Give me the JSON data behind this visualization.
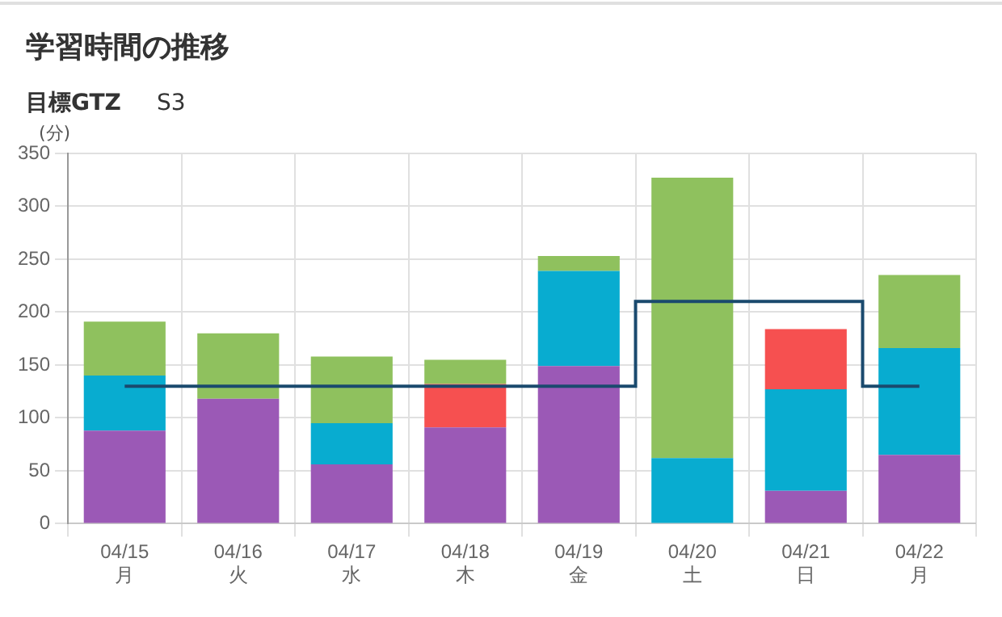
{
  "chart_data": {
    "type": "bar",
    "title": "学習時間の推移",
    "subtitle": "目標GTZ",
    "annotations": [
      "S3"
    ],
    "ylabel": "(分)",
    "categories": [
      "04/15\n月",
      "04/16\n火",
      "04/17\n水",
      "04/18\n木",
      "04/19\n金",
      "04/20\n土",
      "04/21\n日",
      "04/22\n月"
    ],
    "stacked": true,
    "ylim": [
      0,
      350
    ],
    "yticks": [
      0,
      50,
      100,
      150,
      200,
      250,
      300,
      350
    ],
    "grid": true,
    "legend": false,
    "series": [
      {
        "color": "#9b59b6",
        "values": [
          88,
          118,
          56,
          91,
          149,
          null,
          31,
          65
        ]
      },
      {
        "color": "#08acd0",
        "values": [
          52,
          null,
          39,
          null,
          90,
          62,
          96,
          101
        ]
      },
      {
        "color": "#f65050",
        "values": [
          null,
          null,
          null,
          41,
          null,
          null,
          57,
          null
        ]
      },
      {
        "color": "#8fc15e",
        "values": [
          51,
          62,
          63,
          23,
          14,
          265,
          null,
          69
        ]
      },
      {
        "type": "step",
        "color": "#1a4a6e",
        "values": [
          130,
          130,
          130,
          130,
          130,
          210,
          210,
          130
        ]
      }
    ]
  }
}
